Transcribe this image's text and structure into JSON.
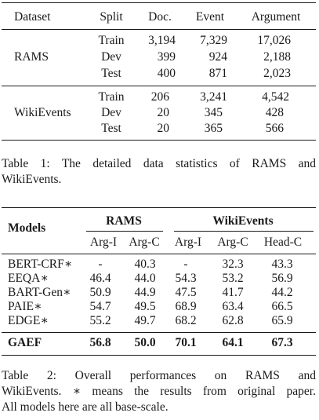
{
  "table1": {
    "headers": [
      "Dataset",
      "Split",
      "Doc.",
      "Event",
      "Argument"
    ],
    "groups": [
      {
        "dataset": "RAMS",
        "rows": [
          {
            "split": "Train",
            "doc": "3,194",
            "event": "7,329",
            "argument": "17,026"
          },
          {
            "split": "Dev",
            "doc": "399",
            "event": "924",
            "argument": "2,188"
          },
          {
            "split": "Test",
            "doc": "400",
            "event": "871",
            "argument": "2,023"
          }
        ]
      },
      {
        "dataset": "WikiEvents",
        "rows": [
          {
            "split": "Train",
            "doc": "206",
            "event": "3,241",
            "argument": "4,542"
          },
          {
            "split": "Dev",
            "doc": "20",
            "event": "345",
            "argument": "428"
          },
          {
            "split": "Test",
            "doc": "20",
            "event": "365",
            "argument": "566"
          }
        ]
      }
    ],
    "caption_lines": [
      "Table 1: The detailed data statistics of RAMS and",
      "WikiEvents."
    ]
  },
  "table2": {
    "models_header": "Models",
    "group_headers": [
      "RAMS",
      "WikiEvents"
    ],
    "sub_headers": [
      "Arg-I",
      "Arg-C",
      "Arg-I",
      "Arg-C",
      "Head-C"
    ],
    "rows": [
      {
        "model": "BERT-CRF∗",
        "values": [
          "-",
          "40.3",
          "-",
          "32.3",
          "43.3"
        ]
      },
      {
        "model": "EEQA∗",
        "values": [
          "46.4",
          "44.0",
          "54.3",
          "53.2",
          "56.9"
        ]
      },
      {
        "model": "BART-Gen∗",
        "values": [
          "50.9",
          "44.9",
          "47.5",
          "41.7",
          "44.2"
        ]
      },
      {
        "model": "PAIE∗",
        "values": [
          "54.7",
          "49.5",
          "68.9",
          "63.4",
          "66.5"
        ]
      },
      {
        "model": "EDGE∗",
        "values": [
          "55.2",
          "49.7",
          "68.2",
          "62.8",
          "65.9"
        ]
      }
    ],
    "final_row": {
      "model": "GAEF",
      "values": [
        "56.8",
        "50.0",
        "70.1",
        "64.1",
        "67.3"
      ]
    },
    "caption_lines": [
      "Table 2: Overall performances on RAMS and",
      "WikiEvents. ∗ means the results from original paper.",
      "All models here are all base-scale."
    ]
  }
}
